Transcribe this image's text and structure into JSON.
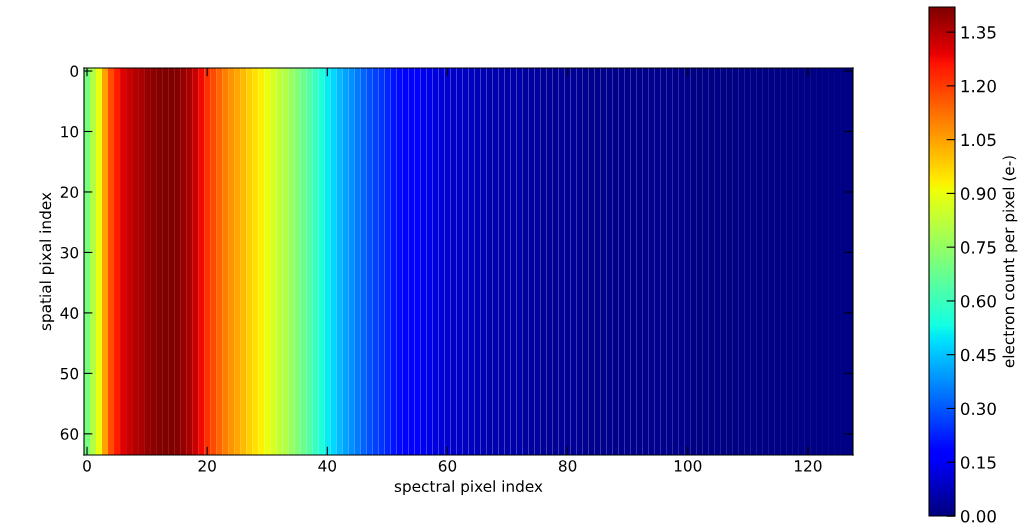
{
  "chart_data": {
    "type": "heatmap",
    "xlabel": "spectral pixel index",
    "ylabel": "spatial pixal index",
    "clabel": "electron count per pixel (e-)",
    "x": [
      0,
      1,
      2,
      3,
      4,
      5,
      6,
      7,
      8,
      9,
      10,
      11,
      12,
      13,
      14,
      15,
      16,
      17,
      18,
      19,
      20,
      21,
      22,
      23,
      24,
      25,
      26,
      27,
      28,
      29,
      30,
      31,
      32,
      33,
      34,
      35,
      36,
      37,
      38,
      39,
      40,
      41,
      42,
      43,
      44,
      45,
      46,
      47,
      48,
      49,
      50,
      51,
      52,
      53,
      54,
      55,
      56,
      57,
      58,
      59,
      60,
      61,
      62,
      63,
      64,
      65,
      66,
      67,
      68,
      69,
      70,
      71,
      72,
      73,
      74,
      75,
      76,
      77,
      78,
      79,
      80,
      81,
      82,
      83,
      84,
      85,
      86,
      87,
      88,
      89,
      90,
      91,
      92,
      93,
      94,
      95,
      96,
      97,
      98,
      99,
      100,
      101,
      102,
      103,
      104,
      105,
      106,
      107,
      108,
      109,
      110,
      111,
      112,
      113,
      114,
      115,
      116,
      117,
      118,
      119,
      120,
      121,
      122,
      123,
      124,
      125,
      126,
      127
    ],
    "cells": [
      [
        0.7,
        0.8,
        0.9,
        1.05,
        1.18,
        1.25,
        1.3,
        1.33,
        1.35,
        1.37,
        1.39,
        1.4,
        1.41,
        1.42,
        1.42,
        1.41,
        1.39,
        1.37,
        1.33,
        1.28,
        1.22,
        1.18,
        1.14,
        1.1,
        1.07,
        1.04,
        1.01,
        0.98,
        0.95,
        0.93,
        0.9,
        0.87,
        0.83,
        0.8,
        0.76,
        0.72,
        0.68,
        0.64,
        0.59,
        0.55,
        0.51,
        0.48,
        0.44,
        0.41,
        0.38,
        0.35,
        0.32,
        0.29,
        0.27,
        0.25,
        0.23,
        0.21,
        0.19,
        0.18,
        0.16,
        0.15,
        0.14,
        0.13,
        0.12,
        0.11,
        0.1,
        0.09,
        0.09,
        0.08,
        0.08,
        0.07,
        0.07,
        0.06,
        0.06,
        0.06,
        0.05,
        0.05,
        0.05,
        0.04,
        0.04,
        0.04,
        0.03,
        0.03,
        0.03,
        0.03,
        0.03,
        0.03,
        0.03,
        0.02,
        0.02,
        0.02,
        0.02,
        0.02,
        0.02,
        0.02,
        0.02,
        0.02,
        0.02,
        0.02,
        0.02,
        0.02,
        0.02,
        0.02,
        0.02,
        0.02,
        0.02,
        0.01,
        0.01,
        0.01,
        0.01,
        0.01,
        0.01,
        0.01,
        0.01,
        0.01,
        0.01,
        0.01,
        0.01,
        0.01,
        0.01,
        0.01,
        0.01,
        0.01,
        0.01,
        0.01,
        0.01,
        0.01,
        0.01,
        0.01,
        0.01,
        0.01,
        0.01,
        0.01
      ]
    ],
    "xlim": [
      -0.5,
      127.5
    ],
    "xticks": [
      0,
      20,
      40,
      60,
      80,
      100,
      120
    ],
    "ylim": [
      63.5,
      -0.5
    ],
    "yticks": [
      0,
      10,
      20,
      30,
      40,
      50,
      60
    ],
    "clim": [
      0,
      1.42
    ],
    "cticks": [
      {
        "value": 0,
        "label": "0.00"
      },
      {
        "value": 0.15,
        "label": "0.15"
      },
      {
        "value": 0.3,
        "label": "0.30"
      },
      {
        "value": 0.45,
        "label": "0.45"
      },
      {
        "value": 0.6,
        "label": "0.60"
      },
      {
        "value": 0.75,
        "label": "0.75"
      },
      {
        "value": 0.9,
        "label": "0.90"
      },
      {
        "value": 1.05,
        "label": "1.05"
      },
      {
        "value": 1.2,
        "label": "1.20"
      },
      {
        "value": 1.35,
        "label": "1.35"
      }
    ]
  }
}
